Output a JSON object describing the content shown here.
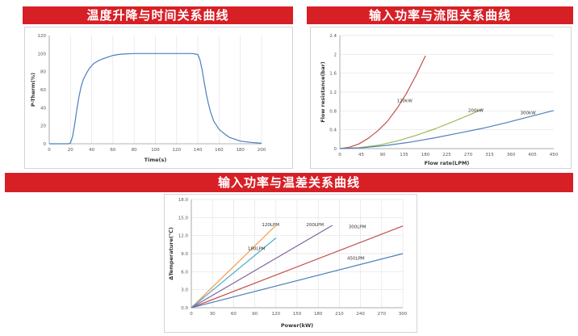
{
  "banners": {
    "top_left": "温度升降与时间关系曲线",
    "top_right": "输入功率与流阻关系曲线",
    "bottom": "输入功率与温差关系曲线"
  },
  "chart_data": [
    {
      "type": "line",
      "title": "",
      "xlabel": "Time(s)",
      "ylabel": "P-Therm(%)",
      "xlim": [
        0,
        200
      ],
      "ylim": [
        0,
        120
      ],
      "xticks": [
        "0",
        "20",
        "40",
        "60",
        "80",
        "100",
        "120",
        "140",
        "160",
        "180",
        "200"
      ],
      "yticks": [
        "0",
        "20",
        "40",
        "60",
        "80",
        "100",
        "120"
      ],
      "grid": "vertical",
      "color": "#4a7fc1",
      "series": [
        {
          "x": [
            0,
            18,
            20,
            22,
            24,
            26,
            28,
            30,
            32,
            35,
            38,
            42,
            46,
            50,
            55,
            60,
            65,
            70,
            80,
            100,
            120,
            135,
            140,
            142,
            144,
            146,
            148,
            150,
            152,
            155,
            160,
            165,
            170,
            180,
            190,
            200
          ],
          "y": [
            0,
            0,
            1,
            8,
            22,
            38,
            52,
            63,
            71,
            78,
            84,
            89,
            92,
            94,
            96,
            98,
            99,
            99.5,
            100,
            100,
            100,
            100,
            99,
            93,
            82,
            68,
            55,
            44,
            35,
            25,
            16,
            11,
            7,
            3,
            1.5,
            0.5
          ]
        }
      ]
    },
    {
      "type": "line",
      "title": "",
      "xlabel": "Flow rate(LPM)",
      "ylabel": "Flow resistance(bar)",
      "xlim": [
        0,
        450
      ],
      "ylim": [
        0,
        2.4
      ],
      "xticks": [
        "0",
        "45",
        "90",
        "135",
        "180",
        "225",
        "270",
        "315",
        "360",
        "405",
        "450"
      ],
      "yticks": [
        "0",
        "0.4",
        "0.8",
        "1.2",
        "1.6",
        "2",
        "2.4"
      ],
      "grid": "horizontal",
      "series": [
        {
          "name": "120kW",
          "color": "#c0504d",
          "x": [
            0,
            20,
            40,
            60,
            80,
            100,
            120,
            140,
            160,
            180
          ],
          "y": [
            0,
            0.03,
            0.1,
            0.22,
            0.38,
            0.58,
            0.85,
            1.17,
            1.55,
            1.97
          ]
        },
        {
          "name": "200kW",
          "color": "#9bbb59",
          "x": [
            0,
            40,
            80,
            120,
            160,
            200,
            240,
            280,
            300
          ],
          "y": [
            0,
            0.02,
            0.07,
            0.16,
            0.28,
            0.42,
            0.58,
            0.75,
            0.84
          ]
        },
        {
          "name": "300kW",
          "color": "#4f81bd",
          "x": [
            0,
            50,
            100,
            150,
            200,
            250,
            300,
            350,
            400,
            450
          ],
          "y": [
            0,
            0.02,
            0.07,
            0.14,
            0.23,
            0.33,
            0.43,
            0.55,
            0.68,
            0.81
          ]
        }
      ]
    },
    {
      "type": "line",
      "title": "",
      "xlabel": "Power(kW)",
      "ylabel": "ΔTemperature(℃)",
      "xlim": [
        0,
        300
      ],
      "ylim": [
        0,
        18
      ],
      "xticks": [
        "0",
        "30",
        "60",
        "90",
        "120",
        "150",
        "180",
        "210",
        "240",
        "270",
        "300"
      ],
      "yticks": [
        "0.0",
        "3.0",
        "6.0",
        "9.0",
        "12.0",
        "15.0",
        "18.0"
      ],
      "grid": "both",
      "series": [
        {
          "name": "120LPM",
          "color": "#f79646",
          "x": [
            0,
            120
          ],
          "y": [
            0,
            13.7
          ]
        },
        {
          "name": "180LPM",
          "color": "#4bacc6",
          "x": [
            0,
            120
          ],
          "y": [
            0,
            11.6
          ]
        },
        {
          "name": "200LPM",
          "color": "#8064a2",
          "x": [
            0,
            200
          ],
          "y": [
            0,
            13.7
          ]
        },
        {
          "name": "300LPM",
          "color": "#c0504d",
          "x": [
            0,
            300
          ],
          "y": [
            0,
            13.6
          ]
        },
        {
          "name": "450LPM",
          "color": "#4f81bd",
          "x": [
            0,
            300
          ],
          "y": [
            0,
            9.0
          ]
        }
      ]
    }
  ]
}
